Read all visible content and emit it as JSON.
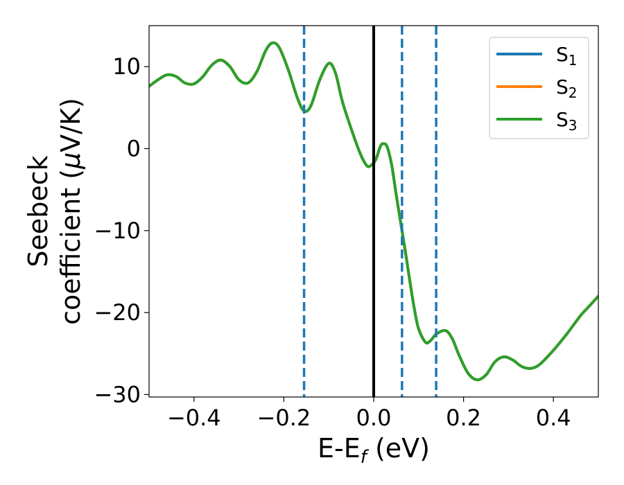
{
  "chart_data": {
    "type": "line",
    "xlabel": {
      "main": "E-E",
      "sub": "f",
      "tail": " (eV)"
    },
    "ylabel": {
      "line1": "Seebeck",
      "line2_pre": "coefficient  (",
      "mu": "μ",
      "line2_post": "V/K)"
    },
    "xlim": [
      -0.5,
      0.5
    ],
    "ylim": [
      -30.3,
      15.0
    ],
    "x_ticks": [
      -0.4,
      -0.2,
      0.0,
      0.2,
      0.4
    ],
    "x_tick_labels": [
      "−0.4",
      "−0.2",
      "0.0",
      "0.2",
      "0.4"
    ],
    "y_ticks": [
      10,
      0,
      -10,
      -20,
      -30
    ],
    "y_tick_labels": [
      "10",
      "0",
      "−10",
      "−20",
      "−30"
    ],
    "grid": false,
    "legend_position": "top-right",
    "series": [
      {
        "name": "S",
        "sub": "1",
        "color": "#1f77b4"
      },
      {
        "name": "S",
        "sub": "2",
        "color": "#ff7f0e"
      },
      {
        "name": "S",
        "sub": "3",
        "color": "#2ca02c"
      }
    ],
    "curve_points": [
      [
        -0.5,
        7.6
      ],
      [
        -0.48,
        8.4
      ],
      [
        -0.46,
        9.0
      ],
      [
        -0.44,
        8.8
      ],
      [
        -0.42,
        8.0
      ],
      [
        -0.4,
        7.9
      ],
      [
        -0.38,
        8.8
      ],
      [
        -0.36,
        10.2
      ],
      [
        -0.34,
        10.8
      ],
      [
        -0.32,
        10.0
      ],
      [
        -0.3,
        8.4
      ],
      [
        -0.28,
        8.0
      ],
      [
        -0.26,
        9.4
      ],
      [
        -0.24,
        12.0
      ],
      [
        -0.225,
        12.9
      ],
      [
        -0.21,
        12.3
      ],
      [
        -0.19,
        9.6
      ],
      [
        -0.17,
        6.2
      ],
      [
        -0.155,
        4.6
      ],
      [
        -0.14,
        5.2
      ],
      [
        -0.12,
        8.4
      ],
      [
        -0.1,
        10.4
      ],
      [
        -0.085,
        9.2
      ],
      [
        -0.07,
        5.8
      ],
      [
        -0.05,
        2.4
      ],
      [
        -0.03,
        -0.6
      ],
      [
        -0.015,
        -2.1
      ],
      [
        -0.005,
        -2.0
      ],
      [
        0.005,
        -1.3
      ],
      [
        0.015,
        0.3
      ],
      [
        0.022,
        0.6
      ],
      [
        0.03,
        0.2
      ],
      [
        0.04,
        -2.0
      ],
      [
        0.05,
        -5.6
      ],
      [
        0.06,
        -9.0
      ],
      [
        0.07,
        -12.4
      ],
      [
        0.08,
        -16.0
      ],
      [
        0.09,
        -19.4
      ],
      [
        0.1,
        -22.0
      ],
      [
        0.115,
        -23.6
      ],
      [
        0.125,
        -23.5
      ],
      [
        0.14,
        -22.6
      ],
      [
        0.16,
        -22.2
      ],
      [
        0.175,
        -23.2
      ],
      [
        0.19,
        -25.2
      ],
      [
        0.21,
        -27.4
      ],
      [
        0.23,
        -28.2
      ],
      [
        0.25,
        -27.6
      ],
      [
        0.27,
        -26.0
      ],
      [
        0.29,
        -25.4
      ],
      [
        0.31,
        -25.8
      ],
      [
        0.33,
        -26.6
      ],
      [
        0.35,
        -26.8
      ],
      [
        0.37,
        -26.3
      ],
      [
        0.4,
        -24.6
      ],
      [
        0.43,
        -22.6
      ],
      [
        0.46,
        -20.4
      ],
      [
        0.48,
        -19.2
      ],
      [
        0.5,
        -18.0
      ]
    ],
    "fermi_line_x": 0.0,
    "fermi_line_color": "#000000",
    "dashed_lines_x": [
      -0.155,
      0.063,
      0.139
    ],
    "dashed_line_color": "#1f77b4"
  }
}
